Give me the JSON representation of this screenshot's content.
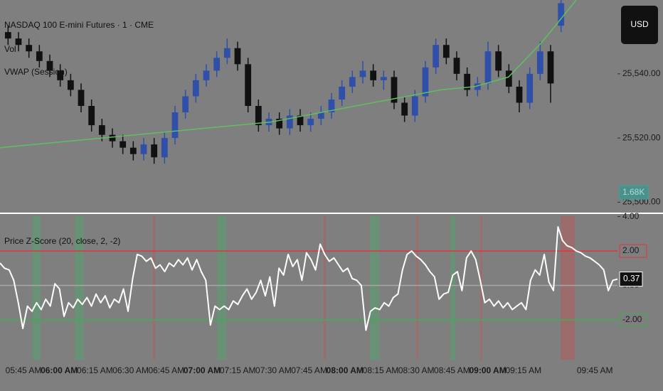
{
  "chart_data": [
    {
      "type": "candlestick",
      "title": "NASDAQ 100 E-mini Futures · 1 · CME",
      "legend": [
        "Vol",
        "VWAP (Session)"
      ],
      "currency": "USD",
      "up_color": "#2f4fa8",
      "down_color": "#111111",
      "open": [
        25553,
        25551,
        25549,
        25547,
        25544,
        25541,
        25538,
        25535,
        25530,
        25524,
        25521,
        25519,
        25517,
        25515,
        25518,
        25514,
        25520,
        25528,
        25533,
        25538,
        25541,
        25545,
        25548,
        25543,
        25530,
        25524,
        25526,
        25523,
        25527,
        25524,
        25526,
        25528,
        25532,
        25536,
        25539,
        25541,
        25538,
        25539,
        25531,
        25527,
        25533,
        25542,
        25549,
        25545,
        25540,
        25535,
        25537,
        25547,
        25541,
        25536,
        25531,
        25540,
        25547,
        25555
      ],
      "high": [
        25555,
        25553,
        25551,
        25549,
        25546,
        25543,
        25540,
        25537,
        25532,
        25526,
        25523,
        25521,
        25519,
        25520,
        25520,
        25522,
        25530,
        25535,
        25540,
        25543,
        25547,
        25551,
        25550,
        25545,
        25532,
        25528,
        25528,
        25529,
        25529,
        25528,
        25530,
        25534,
        25538,
        25541,
        25544,
        25543,
        25541,
        25541,
        25533,
        25535,
        25544,
        25551,
        25551,
        25547,
        25542,
        25539,
        25550,
        25549,
        25543,
        25538,
        25542,
        25550,
        25549,
        25563
      ],
      "low": [
        25549,
        25547,
        25545,
        25542,
        25539,
        25536,
        25533,
        25528,
        25522,
        25519,
        25517,
        25515,
        25513,
        25513,
        25512,
        25512,
        25518,
        25526,
        25531,
        25536,
        25539,
        25543,
        25541,
        25528,
        25522,
        25522,
        25521,
        25521,
        25522,
        25522,
        25524,
        25526,
        25530,
        25534,
        25537,
        25536,
        25535,
        25529,
        25525,
        25525,
        25531,
        25540,
        25543,
        25538,
        25533,
        25533,
        25535,
        25539,
        25534,
        25528,
        25529,
        25538,
        25531,
        25553
      ],
      "close": [
        25551,
        25549,
        25547,
        25544,
        25541,
        25538,
        25535,
        25530,
        25524,
        25521,
        25519,
        25517,
        25515,
        25518,
        25514,
        25520,
        25528,
        25533,
        25538,
        25541,
        25545,
        25548,
        25543,
        25530,
        25524,
        25526,
        25523,
        25527,
        25524,
        25526,
        25528,
        25532,
        25536,
        25539,
        25541,
        25538,
        25539,
        25531,
        25527,
        25533,
        25542,
        25549,
        25545,
        25540,
        25535,
        25537,
        25547,
        25541,
        25536,
        25531,
        25540,
        25547,
        25537,
        25562
      ],
      "series": [
        {
          "name": "VWAP (Session)",
          "color": "#5fbf5f",
          "values": [
            25517,
            25518,
            25519,
            25520,
            25521,
            25522,
            25523,
            25524,
            25525,
            25527,
            25529,
            25531,
            25533,
            25535,
            25536,
            25539,
            25550,
            25563
          ]
        }
      ],
      "volume_label": "1.68K",
      "ylim": [
        25497,
        25563
      ],
      "yticks": [
        {
          "value": 25500,
          "label": "25,500.00"
        },
        {
          "value": 25520,
          "label": "25,520.00"
        },
        {
          "value": 25540,
          "label": "25,540.00"
        }
      ]
    },
    {
      "type": "line",
      "title": "Price Z-Score (20, close, 2, -2)",
      "color": "#ffffff",
      "values": [
        1.3,
        1.0,
        0.9,
        0.3,
        -1.0,
        -2.5,
        -1.2,
        -1.5,
        -1.0,
        -1.4,
        -0.8,
        -1.2,
        0.1,
        -0.2,
        -1.8,
        -1.0,
        -1.3,
        -0.8,
        -1.1,
        -0.7,
        -1.2,
        -0.5,
        -1.0,
        -0.6,
        -1.3,
        -0.8,
        -1.0,
        -0.2,
        -1.5,
        0.4,
        1.8,
        1.7,
        1.4,
        1.6,
        1.0,
        1.2,
        0.8,
        1.3,
        1.1,
        1.5,
        1.2,
        1.6,
        0.9,
        1.5,
        0.8,
        0.3,
        -2.3,
        -1.2,
        -1.4,
        -1.2,
        -1.4,
        -0.9,
        -1.1,
        -0.6,
        -0.2,
        -0.8,
        -0.4,
        0.3,
        -0.6,
        0.5,
        -1.2,
        1.0,
        0.6,
        1.8,
        1.1,
        1.5,
        0.3,
        1.9,
        1.5,
        0.9,
        2.4,
        1.8,
        1.4,
        1.6,
        1.2,
        0.8,
        1.0,
        0.4,
        0.3,
        0.0,
        -2.6,
        -1.5,
        -1.3,
        -1.4,
        -1.0,
        -1.2,
        -0.7,
        -0.5,
        0.9,
        1.8,
        2.0,
        1.7,
        1.5,
        1.2,
        0.8,
        0.5,
        -0.8,
        -0.5,
        -0.4,
        0.6,
        0.8,
        -0.3,
        1.6,
        2.0,
        1.5,
        0.3,
        -1.0,
        -0.8,
        -1.2,
        -0.9,
        -1.3,
        -1.0,
        -1.4,
        -1.2,
        -1.0,
        -1.4,
        0.3,
        0.9,
        0.6,
        1.8,
        0.2,
        -0.3,
        3.4,
        2.6,
        2.3,
        2.2,
        2.0,
        1.9,
        1.7,
        1.6,
        1.4,
        1.2,
        0.9,
        -0.3,
        0.3,
        0.37
      ],
      "ylim": [
        -4.27,
        4.19
      ],
      "yticks": [
        {
          "value": 4,
          "label": "4.00"
        },
        {
          "value": 2,
          "label": "2.00"
        },
        {
          "value": 0,
          "label": "0.00"
        },
        {
          "value": -2,
          "label": "-2.00"
        }
      ],
      "upper_color": "#e0343f",
      "lower_color": "#3fae4f",
      "mid_color": "#a8a8a8"
    }
  ],
  "time_axis": [
    {
      "label": "05:45 AM",
      "bold": false
    },
    {
      "label": "06:00 AM",
      "bold": true
    },
    {
      "label": "06:15 AM",
      "bold": false
    },
    {
      "label": "06:30 AM",
      "bold": false
    },
    {
      "label": "06:45 AM",
      "bold": false
    },
    {
      "label": "07:00 AM",
      "bold": true
    },
    {
      "label": "07:15 AM",
      "bold": false
    },
    {
      "label": "07:30 AM",
      "bold": false
    },
    {
      "label": "07:45 AM",
      "bold": false
    },
    {
      "label": "08:00 AM",
      "bold": true
    },
    {
      "label": "08:15 AM",
      "bold": false
    },
    {
      "label": "08:30 AM",
      "bold": false
    },
    {
      "label": "08:45 AM",
      "bold": false
    },
    {
      "label": "09:00 AM",
      "bold": true
    },
    {
      "label": "09:15 AM",
      "bold": false
    },
    null,
    {
      "label": "09:45 AM",
      "bold": false
    }
  ]
}
